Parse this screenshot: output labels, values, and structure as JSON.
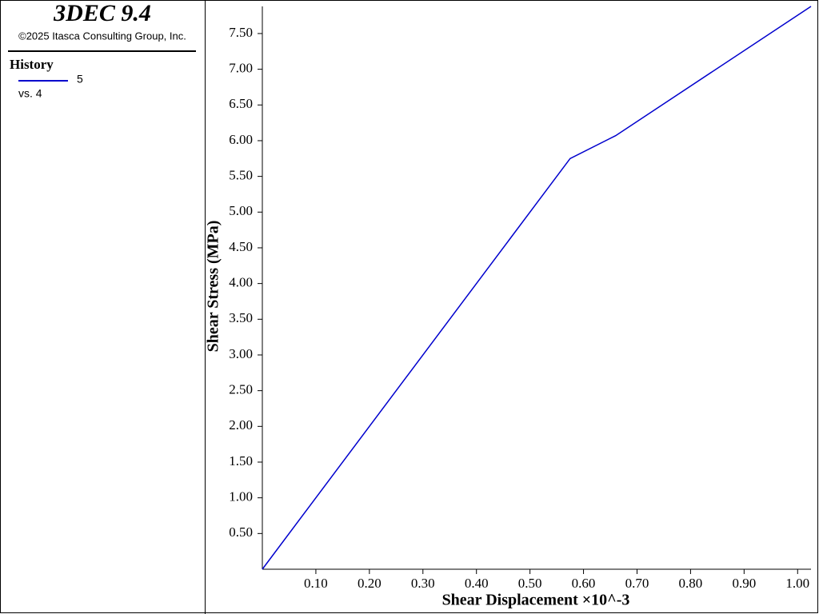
{
  "header": {
    "title": "3DEC 9.4",
    "copyright": "©2025 Itasca Consulting Group, Inc."
  },
  "chart_data": {
    "type": "line",
    "legend_title": "History",
    "x_label": "Shear Displacement ×10^-3",
    "y_label": "Shear Stress (MPa)",
    "x": [
      0,
      0.575,
      0.66,
      1.025
    ],
    "series": [
      {
        "name": "5",
        "against": "vs. 4",
        "color": "#0000cd",
        "values": [
          0,
          5.75,
          6.07,
          7.88
        ]
      }
    ],
    "xlim": [
      0,
      1.025
    ],
    "ylim": [
      0,
      7.88
    ],
    "xticks": [
      {
        "value": 0.1,
        "label": "0.10"
      },
      {
        "value": 0.2,
        "label": "0.20"
      },
      {
        "value": 0.3,
        "label": "0.30"
      },
      {
        "value": 0.4,
        "label": "0.40"
      },
      {
        "value": 0.5,
        "label": "0.50"
      },
      {
        "value": 0.6,
        "label": "0.60"
      },
      {
        "value": 0.7,
        "label": "0.70"
      },
      {
        "value": 0.8,
        "label": "0.80"
      },
      {
        "value": 0.9,
        "label": "0.90"
      },
      {
        "value": 1.0,
        "label": "1.00"
      }
    ],
    "yticks": [
      {
        "value": 0.5,
        "label": "0.50"
      },
      {
        "value": 1.0,
        "label": "1.00"
      },
      {
        "value": 1.5,
        "label": "1.50"
      },
      {
        "value": 2.0,
        "label": "2.00"
      },
      {
        "value": 2.5,
        "label": "2.50"
      },
      {
        "value": 3.0,
        "label": "3.00"
      },
      {
        "value": 3.5,
        "label": "3.50"
      },
      {
        "value": 4.0,
        "label": "4.00"
      },
      {
        "value": 4.5,
        "label": "4.50"
      },
      {
        "value": 5.0,
        "label": "5.00"
      },
      {
        "value": 5.5,
        "label": "5.50"
      },
      {
        "value": 6.0,
        "label": "6.00"
      },
      {
        "value": 6.5,
        "label": "6.50"
      },
      {
        "value": 7.0,
        "label": "7.00"
      },
      {
        "value": 7.5,
        "label": "7.50"
      }
    ],
    "grid": false
  }
}
